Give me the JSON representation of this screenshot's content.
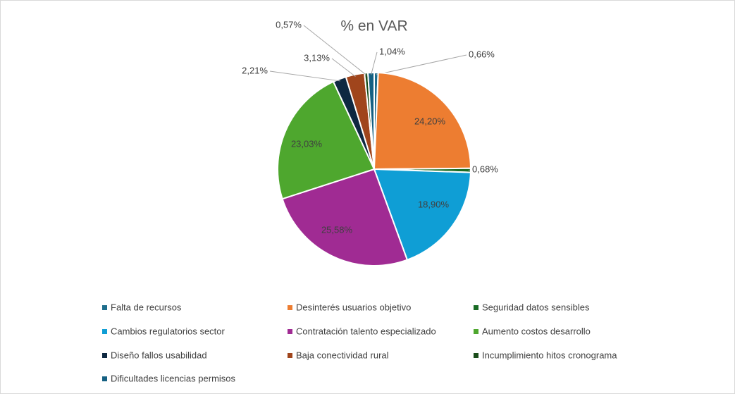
{
  "chart_data": {
    "type": "pie",
    "title": "% en VAR",
    "categories": [
      "Falta de recursos",
      "Desinterés usuarios objetivo",
      "Seguridad datos sensibles",
      "Cambios regulatorios sector",
      "Contratación talento especializado",
      "Aumento costos desarrollo",
      "Diseño fallos usabilidad",
      "Baja conectividad rural",
      "Incumplimiento hitos cronograma",
      "Dificultades licencias permisos"
    ],
    "values": [
      0.66,
      24.2,
      0.68,
      18.9,
      25.58,
      23.03,
      2.21,
      3.13,
      0.57,
      1.04
    ],
    "value_labels": [
      "0,66%",
      "24,20%",
      "0,68%",
      "18,90%",
      "25,58%",
      "23,03%",
      "2,21%",
      "3,13%",
      "0,57%",
      "1,04%"
    ],
    "colors": [
      "#1f6e8c",
      "#ed7d31",
      "#196b24",
      "#0f9ed5",
      "#a02b93",
      "#4ea72e",
      "#0e2841",
      "#a0451c",
      "#1b4d1b",
      "#156082"
    ],
    "legend": "bottom"
  }
}
